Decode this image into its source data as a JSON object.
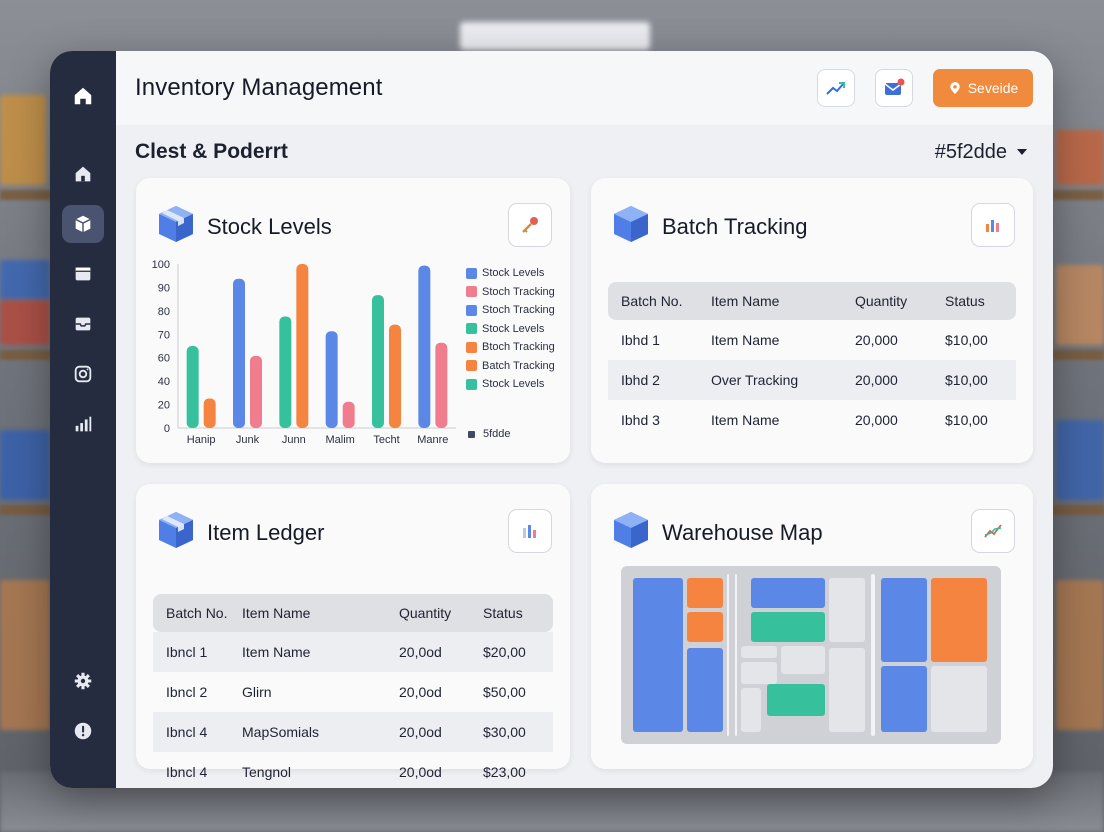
{
  "app": {
    "title": "Inventory Management"
  },
  "topbar": {
    "service_label": "Seveide"
  },
  "subheader": {
    "title": "Clest & Poderrt",
    "filter_value": "#5f2dde"
  },
  "colors": {
    "blue": "#5b87e6",
    "pink": "#f07d8d",
    "teal": "#36c09b",
    "orange": "#f4843f",
    "sidebar": "#252c40",
    "accent": "#f08a3c"
  },
  "sidebar": {
    "items": [
      {
        "icon": "home-icon"
      },
      {
        "icon": "home-outline-icon"
      },
      {
        "icon": "box-icon",
        "active": true
      },
      {
        "icon": "folder-icon"
      },
      {
        "icon": "inbox-icon"
      },
      {
        "icon": "camera-icon"
      },
      {
        "icon": "bar-chart-icon"
      }
    ],
    "bottom": [
      {
        "icon": "gear-icon"
      },
      {
        "icon": "alert-icon"
      }
    ]
  },
  "stock": {
    "title": "Stock Levels",
    "legend": [
      {
        "label": "Stock Levels",
        "color": "#5b87e6"
      },
      {
        "label": "Stoch Tracking",
        "color": "#f07d8d"
      },
      {
        "label": "Stoch Tracking",
        "color": "#5b87e6"
      },
      {
        "label": "Stock Levels",
        "color": "#36c09b"
      },
      {
        "label": "Btoch Tracking",
        "color": "#f4843f"
      },
      {
        "label": "Batch Tracking",
        "color": "#f4843f"
      },
      {
        "label": "Stock Levels",
        "color": "#36c09b"
      }
    ],
    "legend_foot": "5fdde"
  },
  "chart_data": {
    "type": "bar",
    "categories": [
      "Hanip",
      "Junk",
      "Junn",
      "Malim",
      "Techt",
      "Manre"
    ],
    "ytick_labels": [
      "0",
      "20",
      "40",
      "60",
      "70",
      "80",
      "90",
      "100"
    ],
    "bars": [
      [
        {
          "v": 0.5,
          "color": "#36c09b"
        },
        {
          "v": 0.18,
          "color": "#f4843f"
        }
      ],
      [
        {
          "v": 0.91,
          "color": "#5b87e6"
        },
        {
          "v": 0.44,
          "color": "#f07d8d"
        }
      ],
      [
        {
          "v": 0.68,
          "color": "#36c09b"
        },
        {
          "v": 1.0,
          "color": "#f4843f"
        }
      ],
      [
        {
          "v": 0.59,
          "color": "#5b87e6"
        },
        {
          "v": 0.16,
          "color": "#f07d8d"
        }
      ],
      [
        {
          "v": 0.81,
          "color": "#36c09b"
        },
        {
          "v": 0.63,
          "color": "#f4843f"
        }
      ],
      [
        {
          "v": 0.99,
          "color": "#5b87e6"
        },
        {
          "v": 0.52,
          "color": "#f07d8d"
        }
      ]
    ]
  },
  "batch": {
    "title": "Batch Tracking",
    "headers": [
      "Batch No.",
      "Item Name",
      "Quantity",
      "Status"
    ],
    "rows": [
      [
        "Ibhd 1",
        "Item Name",
        "20,000",
        "$10,00"
      ],
      [
        "Ibhd 2",
        "Over Tracking",
        "20,000",
        "$10,00"
      ],
      [
        "Ibhd 3",
        "Item Name",
        "20,000",
        "$10,00"
      ]
    ]
  },
  "ledger": {
    "title": "Item Ledger",
    "headers": [
      "Batch No.",
      "Item Name",
      "Quantity",
      "Status"
    ],
    "rows": [
      [
        "Ibncl 1",
        "Item Name",
        "20,0od",
        "$20,00"
      ],
      [
        "Ibncl 2",
        "Glirn",
        "20,0od",
        "$50,00"
      ],
      [
        "Ibncl 4",
        "MapSomials",
        "20,0od",
        "$30,00"
      ],
      [
        "Ibncl 4",
        "Tengnol",
        "20,0od",
        "$23,00"
      ]
    ]
  },
  "map": {
    "title": "Warehouse Map"
  }
}
